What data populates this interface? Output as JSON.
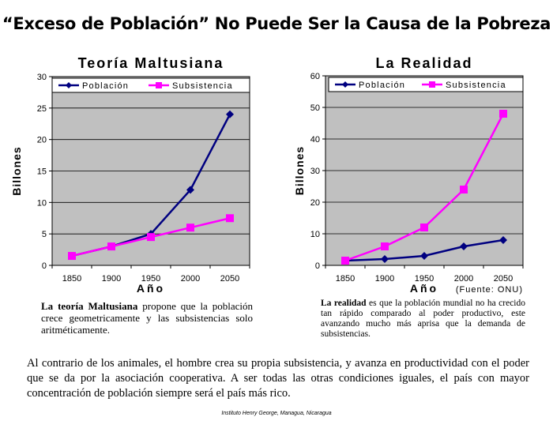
{
  "title": "“Exceso de Población” No Puede Ser la Causa de la Pobreza",
  "chart_data": [
    {
      "type": "line",
      "title": "Teoría Maltusiana",
      "xlabel": "Año",
      "ylabel": "Billones",
      "categories": [
        "1850",
        "1900",
        "1950",
        "2000",
        "2050"
      ],
      "series": [
        {
          "name": "Población",
          "values": [
            1.5,
            3,
            5,
            12,
            24
          ]
        },
        {
          "name": "Subsistencia",
          "values": [
            1.5,
            3,
            4.5,
            6,
            7.5
          ]
        }
      ],
      "ylim": [
        0,
        30
      ],
      "yticks": [
        0,
        5,
        10,
        15,
        20,
        25,
        30
      ],
      "grid": true,
      "legend": "top",
      "colors": {
        "Población": "#000080",
        "Subsistencia": "#ff00ff",
        "plot_bg": "#c0c0c0"
      }
    },
    {
      "type": "line",
      "title": "La Realidad",
      "xlabel": "Año",
      "ylabel": "Billones",
      "note": "(Fuente: ONU)",
      "categories": [
        "1850",
        "1900",
        "1950",
        "2000",
        "2050"
      ],
      "series": [
        {
          "name": "Población",
          "values": [
            1.5,
            2,
            3,
            6,
            8
          ]
        },
        {
          "name": "Subsistencia",
          "values": [
            1.5,
            6,
            12,
            24,
            48
          ]
        }
      ],
      "ylim": [
        0,
        60
      ],
      "yticks": [
        0,
        10,
        20,
        30,
        40,
        50,
        60
      ],
      "grid": true,
      "legend": "top",
      "colors": {
        "Población": "#000080",
        "Subsistencia": "#ff00ff",
        "plot_bg": "#c0c0c0"
      }
    }
  ],
  "captions": {
    "left": {
      "bold": "La teoría Maltusiana",
      "rest": " propone que la población crece geometricamente y las subsistencias solo aritméticamente."
    },
    "right": {
      "bold": "La realidad",
      "rest": " es que la población mundial no ha crecido tan rápido comparado al poder productivo, este avanzando mucho más aprisa que la demanda de subsistencias."
    }
  },
  "body_text": "Al contrario de los animales, el hombre crea su propia subsistencia, y avanza en productividad con el poder que se da por la asociación cooperativa.  A ser todas las otras condiciones iguales, el país con mayor concentración de población siempre será el país más rico.",
  "footer": "Instituto Henry George, Managua, Nicaragua"
}
